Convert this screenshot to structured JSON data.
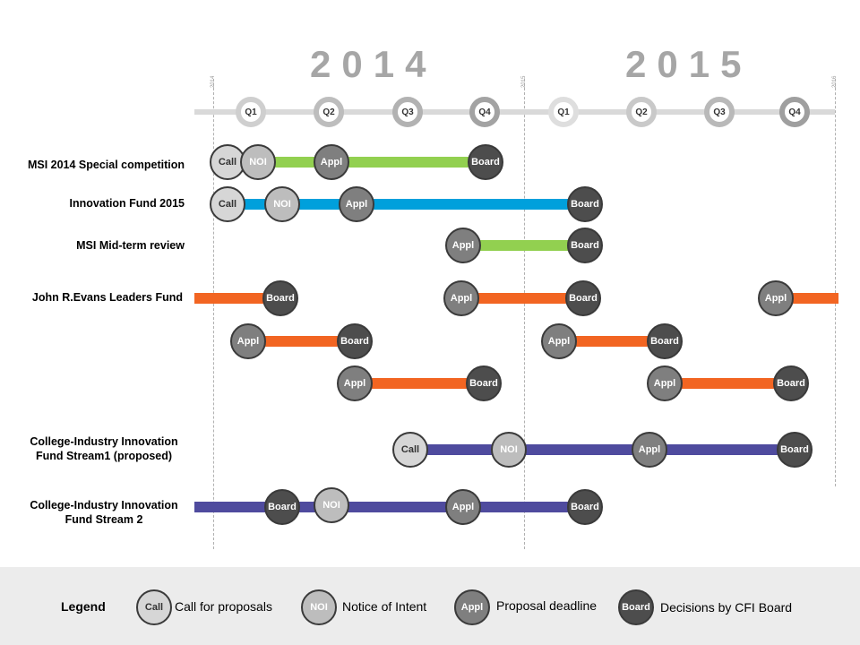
{
  "years": [
    "2014",
    "2015"
  ],
  "year_ticks": [
    "2014",
    "2015",
    "2016"
  ],
  "quarters": [
    "Q1",
    "Q2",
    "Q3",
    "Q4",
    "Q1",
    "Q2",
    "Q3",
    "Q4"
  ],
  "marker_labels": {
    "call": "Call",
    "noi": "NOI",
    "appl": "Appl",
    "board": "Board"
  },
  "colors": {
    "green": "#92d050",
    "blue": "#00a0dc",
    "orange": "#f26522",
    "purple": "#4f4b9e",
    "call": "#d6d6d6",
    "noi": "#bdbdbd",
    "appl": "#7f7f7f",
    "board": "#4d4d4d"
  },
  "rows": [
    {
      "label": "MSI 2014  Special competition"
    },
    {
      "label": "Innovation Fund 2015"
    },
    {
      "label": "MSI  Mid-term review"
    },
    {
      "label": "John R.Evans  Leaders Fund"
    },
    {
      "label": "College-Industry  Innovation Fund Stream1 (proposed)"
    },
    {
      "label": "College-Industry  Innovation Fund Stream 2"
    }
  ],
  "legend": {
    "title": "Legend",
    "items": [
      {
        "marker": "Call",
        "text": "Call for proposals"
      },
      {
        "marker": "NOI",
        "text": "Notice of Intent"
      },
      {
        "marker": "Appl",
        "text": "Proposal deadline"
      },
      {
        "marker": "Board",
        "text": "Decisions by CFI Board"
      }
    ]
  }
}
